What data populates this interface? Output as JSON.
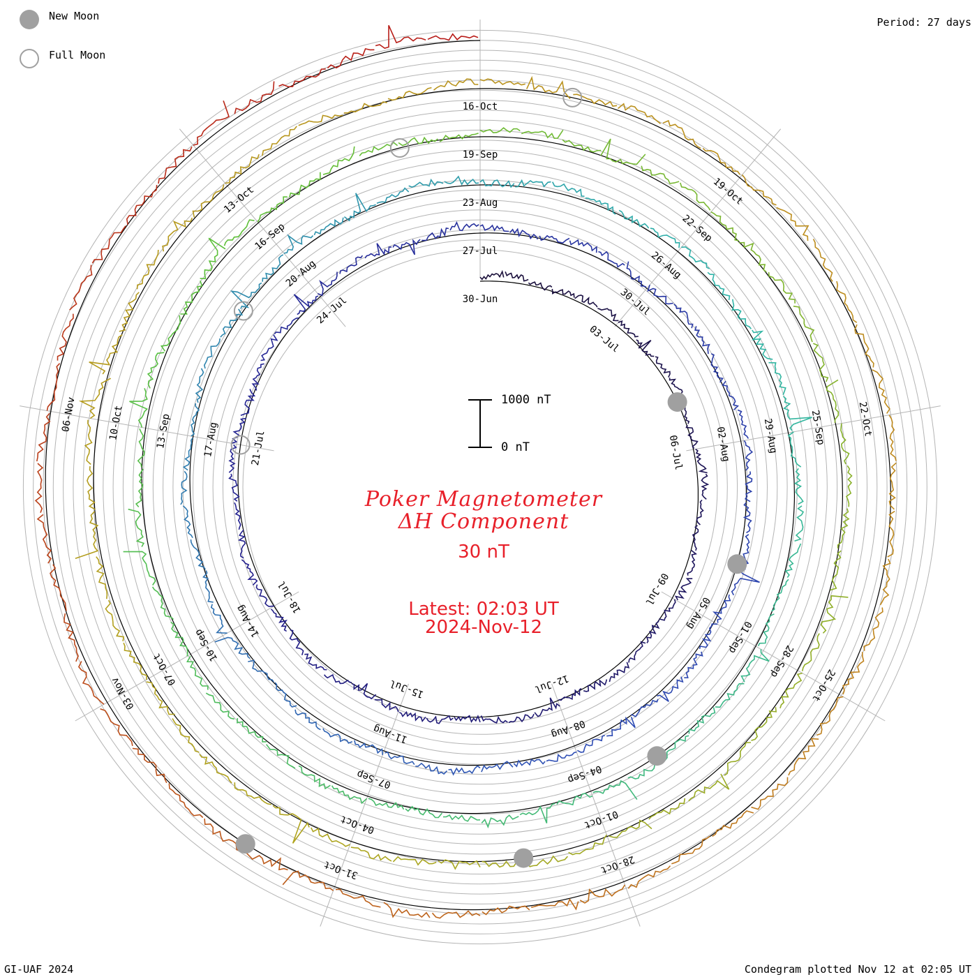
{
  "legend": {
    "new_moon": "New Moon",
    "full_moon": "Full Moon"
  },
  "period": "Period: 27 days",
  "footer_left": "GI-UAF 2024",
  "footer_right": "Condegram plotted Nov 12 at 02:05 UT",
  "title": {
    "line1": "Poker Magnetometer",
    "line2": "ΔH Component",
    "scale": "30 nT",
    "latest": "Latest: 02:03 UT",
    "date": "2024-Nov-12"
  },
  "scale_bar": {
    "top_label": "1000 nT",
    "bottom_label": "0 nT"
  },
  "colors": {
    "accent": "#e8202a",
    "grid": "#b4b4b4",
    "moon": "#a0a0a0",
    "turn1": "#1a0f3a",
    "turn2": "#23208f",
    "turn3": "#2f4db5",
    "turn4": "#2fb5a8",
    "turn5": "#5dc03a",
    "turn6": "#b0a41e",
    "turn7": "#c0881e",
    "turn8": "#b81818"
  },
  "chart_data": {
    "type": "condegram",
    "period_days": 27,
    "turns": [
      {
        "start": "2024-Jun-30",
        "labels": [
          "30-Jun",
          "03-Jul",
          "06-Jul",
          "09-Jul",
          "12-Jul",
          "15-Jul",
          "18-Jul",
          "21-Jul",
          "24-Jul"
        ]
      },
      {
        "start": "2024-Jul-27",
        "labels": [
          "27-Jul",
          "30-Jul",
          "02-Aug",
          "05-Aug",
          "08-Aug",
          "11-Aug",
          "14-Aug",
          "17-Aug",
          "20-Aug"
        ]
      },
      {
        "start": "2024-Aug-23",
        "labels": [
          "23-Aug",
          "26-Aug",
          "29-Aug",
          "01-Sep",
          "04-Sep",
          "07-Sep",
          "10-Sep",
          "13-Sep",
          "16-Sep"
        ]
      },
      {
        "start": "2024-Sep-19",
        "labels": [
          "19-Sep",
          "22-Sep",
          "25-Sep",
          "28-Sep",
          "01-Oct",
          "04-Oct",
          "07-Oct",
          "10-Oct",
          "13-Oct"
        ]
      },
      {
        "start": "2024-Oct-16",
        "labels": [
          "16-Oct",
          "19-Oct",
          "22-Oct",
          "25-Oct",
          "28-Oct",
          "31-Oct",
          "03-Nov",
          "06-Nov"
        ]
      }
    ],
    "trace_segments": [
      {
        "from": "2024-Jun-30",
        "to": "2024-Jul-27"
      },
      {
        "from": "2024-Jul-27",
        "to": "2024-Aug-23"
      },
      {
        "from": "2024-Aug-23",
        "to": "2024-Sep-19"
      },
      {
        "from": "2024-Sep-19",
        "to": "2024-Oct-16"
      },
      {
        "from": "2024-Oct-16",
        "to": "2024-Nov-12"
      }
    ],
    "new_moons": [
      "2024-Jul-05",
      "2024-Aug-04",
      "2024-Sep-03",
      "2024-Oct-02",
      "2024-Nov-01"
    ],
    "full_moons": [
      "2024-Jul-21",
      "2024-Aug-19",
      "2024-Sep-18",
      "2024-Oct-17"
    ],
    "scale_bar_nT": [
      0,
      1000
    ],
    "y_units": "nT"
  }
}
